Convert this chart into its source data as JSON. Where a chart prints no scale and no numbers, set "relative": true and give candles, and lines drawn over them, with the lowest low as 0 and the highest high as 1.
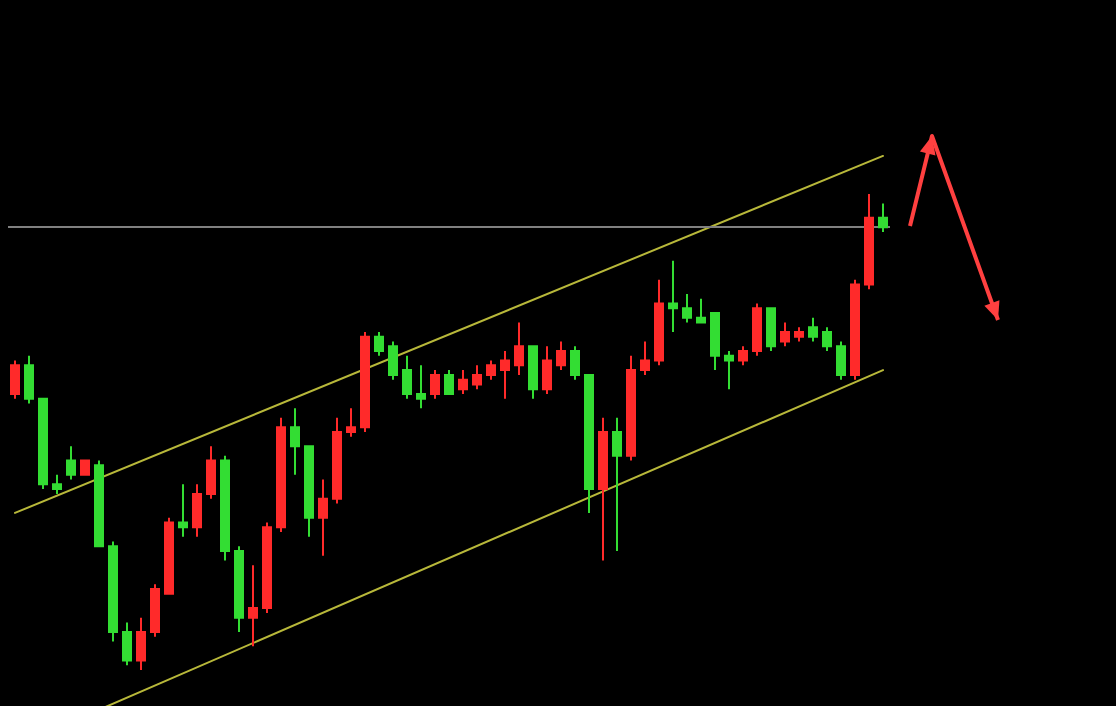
{
  "chart_data": {
    "type": "candlestick",
    "relative": true,
    "grid": false,
    "categories": [
      null,
      null,
      null,
      null,
      null,
      null,
      null,
      null,
      null,
      null,
      null,
      null,
      null,
      null,
      null,
      null,
      null,
      null,
      null,
      null,
      null,
      null,
      null,
      null,
      null,
      null,
      null,
      null,
      null,
      null,
      null,
      null,
      null,
      null,
      null,
      null,
      null,
      null,
      null,
      null,
      null,
      null,
      null,
      null,
      null,
      null,
      null,
      null,
      null,
      null,
      null,
      null,
      null,
      null,
      null,
      null,
      null,
      null,
      null,
      null,
      null,
      null,
      null
    ],
    "ohlc": [
      [
        0.58,
        0.65,
        0.57,
        0.64
      ],
      [
        0.64,
        0.66,
        0.56,
        0.57
      ],
      [
        0.57,
        0.57,
        0.38,
        0.39
      ],
      [
        0.39,
        0.41,
        0.37,
        0.38
      ],
      [
        0.44,
        0.47,
        0.4,
        0.41
      ],
      [
        0.41,
        0.44,
        0.41,
        0.44
      ],
      [
        0.43,
        0.44,
        0.26,
        0.26
      ],
      [
        0.26,
        0.27,
        0.06,
        0.08
      ],
      [
        0.08,
        0.1,
        0.01,
        0.02
      ],
      [
        0.02,
        0.11,
        0,
        0.08
      ],
      [
        0.08,
        0.18,
        0.07,
        0.17
      ],
      [
        0.16,
        0.32,
        0.16,
        0.31
      ],
      [
        0.31,
        0.39,
        0.28,
        0.3
      ],
      [
        0.3,
        0.39,
        0.28,
        0.37
      ],
      [
        0.37,
        0.47,
        0.36,
        0.44
      ],
      [
        0.44,
        0.45,
        0.23,
        0.25
      ],
      [
        0.25,
        0.26,
        0.08,
        0.11
      ],
      [
        0.11,
        0.22,
        0.05,
        0.13
      ],
      [
        0.13,
        0.31,
        0.12,
        0.3
      ],
      [
        0.3,
        0.53,
        0.29,
        0.51
      ],
      [
        0.51,
        0.55,
        0.41,
        0.47
      ],
      [
        0.47,
        0.47,
        0.28,
        0.32
      ],
      [
        0.32,
        0.4,
        0.24,
        0.36
      ],
      [
        0.36,
        0.53,
        0.35,
        0.5
      ],
      [
        0.5,
        0.55,
        0.49,
        0.51
      ],
      [
        0.51,
        0.71,
        0.5,
        0.7
      ],
      [
        0.7,
        0.71,
        0.66,
        0.67
      ],
      [
        0.68,
        0.69,
        0.61,
        0.62
      ],
      [
        0.63,
        0.66,
        0.57,
        0.58
      ],
      [
        0.58,
        0.64,
        0.55,
        0.57
      ],
      [
        0.58,
        0.63,
        0.57,
        0.62
      ],
      [
        0.62,
        0.63,
        0.58,
        0.58
      ],
      [
        0.59,
        0.63,
        0.58,
        0.61
      ],
      [
        0.6,
        0.64,
        0.59,
        0.62
      ],
      [
        0.62,
        0.65,
        0.61,
        0.64
      ],
      [
        0.63,
        0.67,
        0.57,
        0.65
      ],
      [
        0.64,
        0.73,
        0.62,
        0.68
      ],
      [
        0.68,
        0.68,
        0.57,
        0.59
      ],
      [
        0.59,
        0.68,
        0.58,
        0.65
      ],
      [
        0.64,
        0.69,
        0.63,
        0.67
      ],
      [
        0.67,
        0.68,
        0.61,
        0.62
      ],
      [
        0.62,
        0.62,
        0.33,
        0.38
      ],
      [
        0.38,
        0.53,
        0.23,
        0.5
      ],
      [
        0.5,
        0.53,
        0.25,
        0.45
      ],
      [
        0.45,
        0.66,
        0.44,
        0.63
      ],
      [
        0.63,
        0.69,
        0.62,
        0.65
      ],
      [
        0.65,
        0.82,
        0.64,
        0.77
      ],
      [
        0.77,
        0.86,
        0.71,
        0.76
      ],
      [
        0.76,
        0.79,
        0.73,
        0.74
      ],
      [
        0.74,
        0.78,
        0.73,
        0.73
      ],
      [
        0.75,
        0.75,
        0.63,
        0.66
      ],
      [
        0.66,
        0.67,
        0.59,
        0.65
      ],
      [
        0.65,
        0.68,
        0.64,
        0.67
      ],
      [
        0.67,
        0.77,
        0.66,
        0.76
      ],
      [
        0.76,
        0.76,
        0.67,
        0.68
      ],
      [
        0.69,
        0.73,
        0.68,
        0.71
      ],
      [
        0.7,
        0.72,
        0.69,
        0.71
      ],
      [
        0.72,
        0.74,
        0.69,
        0.7
      ],
      [
        0.71,
        0.72,
        0.67,
        0.68
      ],
      [
        0.68,
        0.69,
        0.61,
        0.62
      ],
      [
        0.62,
        0.82,
        0.61,
        0.81
      ],
      [
        0.81,
        1,
        0.8,
        0.95
      ],
      [
        0.95,
        0.98,
        0.92,
        0.93
      ]
    ],
    "colors": [
      "#ff2a2a",
      "#33dd33",
      "#33dd33",
      "#33dd33",
      "#33dd33",
      "#ff2a2a",
      "#33dd33",
      "#33dd33",
      "#33dd33",
      "#ff2a2a",
      "#ff2a2a",
      "#ff2a2a",
      "#33dd33",
      "#ff2a2a",
      "#ff2a2a",
      "#33dd33",
      "#33dd33",
      "#ff2a2a",
      "#ff2a2a",
      "#ff2a2a",
      "#33dd33",
      "#33dd33",
      "#ff2a2a",
      "#ff2a2a",
      "#ff2a2a",
      "#ff2a2a",
      "#33dd33",
      "#33dd33",
      "#33dd33",
      "#33dd33",
      "#ff2a2a",
      "#33dd33",
      "#ff2a2a",
      "#ff2a2a",
      "#ff2a2a",
      "#ff2a2a",
      "#ff2a2a",
      "#33dd33",
      "#ff2a2a",
      "#ff2a2a",
      "#33dd33",
      "#33dd33",
      "#ff2a2a",
      "#33dd33",
      "#ff2a2a",
      "#ff2a2a",
      "#ff2a2a",
      "#33dd33",
      "#33dd33",
      "#33dd33",
      "#33dd33",
      "#33dd33",
      "#ff2a2a",
      "#ff2a2a",
      "#33dd33",
      "#ff2a2a",
      "#ff2a2a",
      "#33dd33",
      "#33dd33",
      "#33dd33",
      "#ff2a2a",
      "#ff2a2a",
      "#33dd33"
    ],
    "series": [
      {
        "type": "line",
        "color": "#b8b83a",
        "values": [
          0.33,
          null,
          null,
          null,
          null,
          null,
          null,
          null,
          null,
          null,
          null,
          null,
          null,
          null,
          null,
          null,
          null,
          null,
          null,
          null,
          null,
          null,
          null,
          null,
          null,
          null,
          null,
          null,
          null,
          null,
          null,
          null,
          null,
          null,
          null,
          null,
          null,
          null,
          null,
          null,
          null,
          null,
          null,
          null,
          null,
          null,
          null,
          null,
          null,
          null,
          null,
          null,
          null,
          null,
          null,
          null,
          null,
          null,
          null,
          null,
          null,
          null,
          1.08
        ]
      },
      {
        "type": "line",
        "color": "#b8b83a",
        "values": [
          -0.16,
          null,
          null,
          null,
          null,
          null,
          null,
          null,
          null,
          null,
          null,
          null,
          null,
          null,
          null,
          null,
          null,
          null,
          null,
          null,
          null,
          null,
          null,
          null,
          null,
          null,
          null,
          null,
          null,
          null,
          null,
          null,
          null,
          null,
          null,
          null,
          null,
          null,
          null,
          null,
          null,
          null,
          null,
          null,
          null,
          null,
          null,
          null,
          null,
          null,
          null,
          null,
          null,
          null,
          null,
          null,
          null,
          null,
          null,
          null,
          null,
          null,
          0.63
        ]
      }
    ],
    "ref_lines": [
      {
        "axis": "y",
        "value": 0.93,
        "color": "#808080"
      }
    ]
  }
}
